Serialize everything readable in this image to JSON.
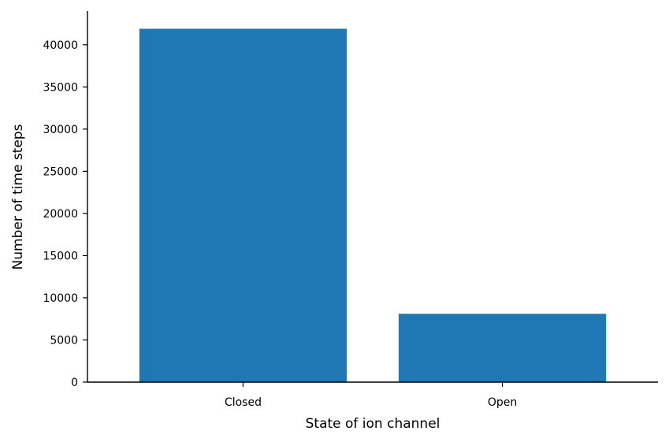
{
  "chart_data": {
    "type": "bar",
    "title": "",
    "xlabel": "State of ion channel",
    "ylabel": "Number of time steps",
    "categories": [
      "Closed",
      "Open"
    ],
    "values": [
      41900,
      8100
    ],
    "ylim": [
      0,
      44000
    ],
    "yticks": [
      0,
      5000,
      10000,
      15000,
      20000,
      25000,
      30000,
      35000,
      40000
    ],
    "yticks_labels": [
      "0",
      "5000",
      "10000",
      "15000",
      "20000",
      "25000",
      "30000",
      "35000",
      "40000"
    ],
    "bar_color": "#1f77b4",
    "grid": false,
    "legend": "none"
  }
}
